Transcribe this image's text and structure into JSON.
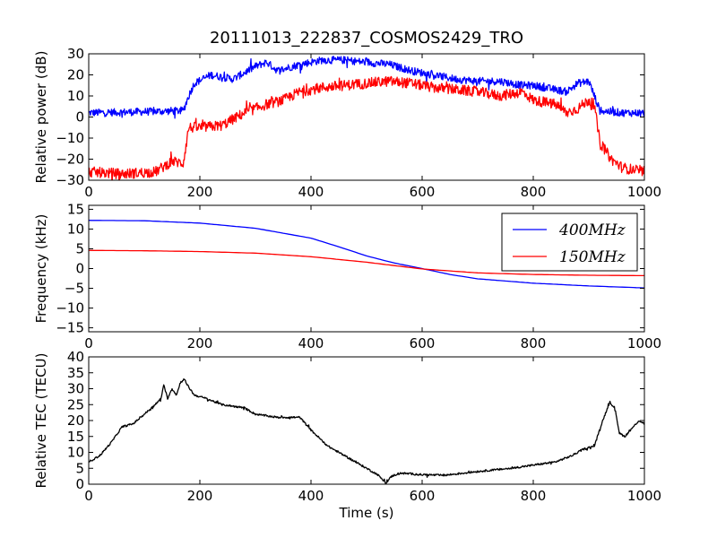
{
  "chart_data": {
    "type": "line",
    "title": "20111013_222837_COSMOS2429_TRO",
    "xlabel": "Time (s)",
    "xlim": [
      0,
      1000
    ],
    "xticks": [
      0,
      200,
      400,
      600,
      800,
      1000
    ],
    "colors": {
      "blue": "#0000ff",
      "red": "#ff0000",
      "black": "#000000"
    },
    "panels": [
      {
        "id": "power",
        "ylabel": "Relative power (dB)",
        "ylim": [
          -30,
          30
        ],
        "yticks": [
          30,
          20,
          10,
          0,
          -10,
          -20,
          -30
        ],
        "legend": false,
        "series": [
          {
            "color": "#0000ff",
            "noise": 1.8,
            "points": [
              [
                0,
                2
              ],
              [
                100,
                2.5
              ],
              [
                170,
                3
              ],
              [
                180,
                10
              ],
              [
                190,
                16
              ],
              [
                220,
                20
              ],
              [
                260,
                18
              ],
              [
                300,
                24
              ],
              [
                320,
                26
              ],
              [
                340,
                22
              ],
              [
                380,
                25
              ],
              [
                420,
                27
              ],
              [
                460,
                27
              ],
              [
                500,
                26
              ],
              [
                540,
                25
              ],
              [
                580,
                22
              ],
              [
                620,
                20
              ],
              [
                660,
                18
              ],
              [
                700,
                17
              ],
              [
                740,
                17
              ],
              [
                780,
                15
              ],
              [
                800,
                15
              ],
              [
                860,
                12
              ],
              [
                880,
                16
              ],
              [
                900,
                17
              ],
              [
                910,
                10
              ],
              [
                920,
                3
              ],
              [
                960,
                2
              ],
              [
                1000,
                2
              ]
            ]
          },
          {
            "color": "#ff0000",
            "noise": 2.5,
            "points": [
              [
                0,
                -26
              ],
              [
                60,
                -27
              ],
              [
                120,
                -26
              ],
              [
                150,
                -21
              ],
              [
                170,
                -22
              ],
              [
                180,
                -5
              ],
              [
                200,
                -5
              ],
              [
                240,
                -4
              ],
              [
                280,
                2
              ],
              [
                320,
                6
              ],
              [
                350,
                8
              ],
              [
                380,
                12
              ],
              [
                420,
                14
              ],
              [
                460,
                15
              ],
              [
                500,
                16
              ],
              [
                540,
                17
              ],
              [
                580,
                16
              ],
              [
                620,
                14
              ],
              [
                660,
                13
              ],
              [
                700,
                12
              ],
              [
                740,
                10
              ],
              [
                780,
                12
              ],
              [
                800,
                8
              ],
              [
                840,
                6
              ],
              [
                860,
                2
              ],
              [
                880,
                4
              ],
              [
                900,
                8
              ],
              [
                910,
                5
              ],
              [
                920,
                -12
              ],
              [
                940,
                -20
              ],
              [
                960,
                -24
              ],
              [
                1000,
                -26
              ]
            ]
          }
        ]
      },
      {
        "id": "frequency",
        "ylabel": "Frequency (kHz)",
        "ylim": [
          -16,
          16
        ],
        "yticks": [
          15,
          10,
          5,
          0,
          -5,
          -10,
          -15
        ],
        "legend": true,
        "legend_position": "upper-right",
        "series": [
          {
            "name": "400MHz",
            "color": "#0000ff",
            "noise": 0,
            "points": [
              [
                0,
                12.2
              ],
              [
                100,
                12.1
              ],
              [
                200,
                11.5
              ],
              [
                300,
                10.2
              ],
              [
                400,
                7.7
              ],
              [
                450,
                5.5
              ],
              [
                500,
                3.2
              ],
              [
                550,
                1.4
              ],
              [
                600,
                0
              ],
              [
                650,
                -1.5
              ],
              [
                700,
                -2.6
              ],
              [
                800,
                -3.7
              ],
              [
                900,
                -4.4
              ],
              [
                1000,
                -4.9
              ]
            ]
          },
          {
            "name": "150MHz",
            "color": "#ff0000",
            "noise": 0,
            "points": [
              [
                0,
                4.6
              ],
              [
                100,
                4.5
              ],
              [
                200,
                4.3
              ],
              [
                300,
                3.9
              ],
              [
                400,
                3.0
              ],
              [
                500,
                1.6
              ],
              [
                600,
                -0.1
              ],
              [
                700,
                -1.1
              ],
              [
                800,
                -1.5
              ],
              [
                900,
                -1.7
              ],
              [
                1000,
                -1.8
              ]
            ]
          }
        ]
      },
      {
        "id": "tec",
        "ylabel": "Relative TEC (TECU)",
        "ylim": [
          0,
          40
        ],
        "yticks": [
          40,
          35,
          30,
          25,
          20,
          15,
          10,
          5,
          0
        ],
        "legend": false,
        "series": [
          {
            "color": "#000000",
            "noise": 0.3,
            "points": [
              [
                0,
                7
              ],
              [
                20,
                9
              ],
              [
                40,
                13
              ],
              [
                60,
                18
              ],
              [
                80,
                19
              ],
              [
                100,
                22
              ],
              [
                120,
                25
              ],
              [
                130,
                27
              ],
              [
                135,
                31
              ],
              [
                142,
                27
              ],
              [
                150,
                30
              ],
              [
                158,
                28
              ],
              [
                165,
                32
              ],
              [
                172,
                33
              ],
              [
                178,
                31
              ],
              [
                190,
                28
              ],
              [
                210,
                27
              ],
              [
                240,
                25
              ],
              [
                280,
                24
              ],
              [
                300,
                22
              ],
              [
                340,
                21
              ],
              [
                380,
                21
              ],
              [
                400,
                17
              ],
              [
                430,
                12
              ],
              [
                460,
                9
              ],
              [
                480,
                7
              ],
              [
                500,
                5
              ],
              [
                520,
                3
              ],
              [
                535,
                0.3
              ],
              [
                545,
                2.5
              ],
              [
                560,
                3.5
              ],
              [
                600,
                3
              ],
              [
                640,
                2.8
              ],
              [
                700,
                4
              ],
              [
                760,
                5
              ],
              [
                800,
                6
              ],
              [
                840,
                7
              ],
              [
                870,
                9
              ],
              [
                890,
                11
              ],
              [
                910,
                12
              ],
              [
                925,
                20
              ],
              [
                938,
                26
              ],
              [
                948,
                23
              ],
              [
                955,
                16
              ],
              [
                965,
                15
              ],
              [
                980,
                18
              ],
              [
                990,
                20
              ],
              [
                1000,
                19
              ]
            ]
          }
        ]
      }
    ]
  }
}
